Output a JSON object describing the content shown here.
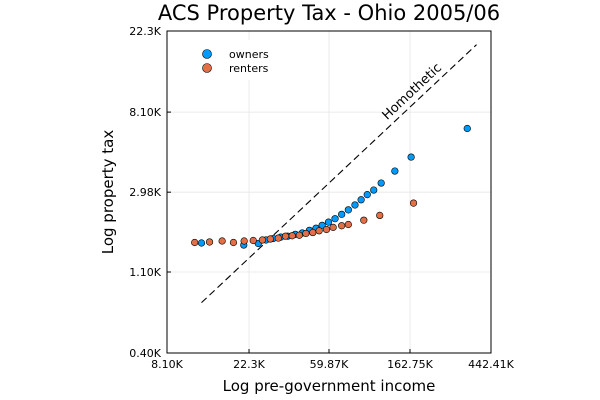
{
  "chart_data": {
    "type": "scatter",
    "title": "ACS Property Tax - Ohio 2005/06",
    "xlabel": "Log pre-government income",
    "ylabel": "Log property tax",
    "x_scale": "log",
    "y_scale": "log",
    "xlim": [
      8100,
      442410
    ],
    "ylim": [
      400,
      22300
    ],
    "x_ticks": [
      {
        "value": 8100,
        "label": "8.10K"
      },
      {
        "value": 22300,
        "label": "22.3K"
      },
      {
        "value": 59870,
        "label": "59.87K"
      },
      {
        "value": 162750,
        "label": "162.75K"
      },
      {
        "value": 442410,
        "label": "442.41K"
      }
    ],
    "y_ticks": [
      {
        "value": 400,
        "label": "0.40K"
      },
      {
        "value": 1100,
        "label": "1.10K"
      },
      {
        "value": 2980,
        "label": "2.98K"
      },
      {
        "value": 8100,
        "label": "8.10K"
      },
      {
        "value": 22300,
        "label": "22.3K"
      }
    ],
    "grid": true,
    "legend_position": "top-left",
    "reference_line": {
      "label": "Homothetic",
      "style": "dashed",
      "color": "#000000",
      "points": [
        [
          12400,
          750
        ],
        [
          370000,
          18800
        ]
      ]
    },
    "series": [
      {
        "name": "owners",
        "color": "#009AFA",
        "points": [
          [
            12400,
            1580
          ],
          [
            20900,
            1540
          ],
          [
            25000,
            1570
          ],
          [
            27500,
            1640
          ],
          [
            30000,
            1670
          ],
          [
            33000,
            1700
          ],
          [
            36000,
            1720
          ],
          [
            39500,
            1760
          ],
          [
            43000,
            1790
          ],
          [
            47000,
            1850
          ],
          [
            51000,
            1900
          ],
          [
            55000,
            1970
          ],
          [
            59500,
            2050
          ],
          [
            64500,
            2140
          ],
          [
            70000,
            2260
          ],
          [
            76000,
            2390
          ],
          [
            82500,
            2540
          ],
          [
            89000,
            2710
          ],
          [
            96000,
            2890
          ],
          [
            104000,
            3060
          ],
          [
            114000,
            3340
          ],
          [
            135000,
            3880
          ],
          [
            165000,
            4620
          ],
          [
            330000,
            6600
          ]
        ]
      },
      {
        "name": "renters",
        "color": "#E26F46",
        "points": [
          [
            11400,
            1590
          ],
          [
            13700,
            1600
          ],
          [
            16000,
            1620
          ],
          [
            18400,
            1590
          ],
          [
            21000,
            1620
          ],
          [
            23500,
            1630
          ],
          [
            26300,
            1640
          ],
          [
            29000,
            1660
          ],
          [
            32000,
            1680
          ],
          [
            35000,
            1720
          ],
          [
            38000,
            1730
          ],
          [
            41500,
            1740
          ],
          [
            45000,
            1780
          ],
          [
            49000,
            1800
          ],
          [
            53000,
            1840
          ],
          [
            58000,
            1870
          ],
          [
            63000,
            1920
          ],
          [
            70000,
            1960
          ],
          [
            76000,
            1990
          ],
          [
            92000,
            2100
          ],
          [
            112000,
            2230
          ],
          [
            170000,
            2600
          ]
        ]
      }
    ]
  }
}
